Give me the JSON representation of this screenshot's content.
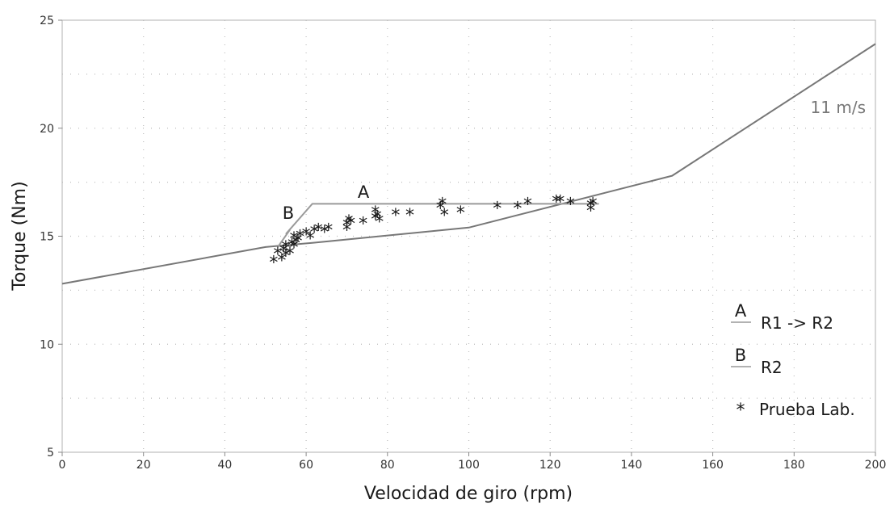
{
  "chart_data": {
    "type": "scatter",
    "xlabel": "Velocidad de giro (rpm)",
    "ylabel": "Torque (Nm)",
    "xlim": [
      0,
      200
    ],
    "ylim": [
      5,
      25
    ],
    "xticks": [
      0,
      20,
      40,
      60,
      80,
      100,
      120,
      140,
      160,
      180,
      200
    ],
    "yticks": [
      5,
      10,
      15,
      20,
      25
    ],
    "grid": true,
    "legend_position": "bottom-right",
    "line_color": "#777777",
    "series": [
      {
        "name": "",
        "type": "line",
        "x": [
          0,
          50,
          62,
          100,
          150,
          200
        ],
        "y": [
          12.8,
          14.5,
          14.7,
          15.4,
          17.8,
          23.9
        ]
      },
      {
        "name": "R1 -> R2",
        "type": "line",
        "annotation": "A",
        "x": [
          55,
          61.5,
          132
        ],
        "y": [
          15.1,
          16.5,
          16.5
        ]
      },
      {
        "name": "R2",
        "type": "line",
        "annotation": "B",
        "x": [
          53,
          56
        ],
        "y": [
          14.5,
          15.3
        ]
      },
      {
        "name": "Prueba Lab.",
        "type": "scatter",
        "marker": "*",
        "x": [
          52,
          53,
          54,
          54.5,
          55,
          55,
          56,
          56.5,
          57,
          57,
          57.5,
          58,
          58.5,
          60,
          61,
          62,
          63,
          64.5,
          65.5,
          70,
          70,
          70.5,
          71,
          74,
          77,
          77,
          77.5,
          78,
          82,
          85.5,
          93,
          93.5,
          94,
          98,
          107,
          112,
          114.5,
          121.5,
          122.5,
          125,
          130,
          130,
          130.5
        ],
        "y": [
          13.8,
          14.2,
          13.9,
          14.3,
          14.1,
          14.5,
          14.2,
          14.6,
          14.5,
          14.9,
          14.7,
          14.8,
          15.0,
          15.1,
          14.9,
          15.2,
          15.3,
          15.2,
          15.3,
          15.3,
          15.5,
          15.7,
          15.6,
          15.6,
          15.8,
          16.1,
          15.9,
          15.7,
          16.0,
          16.0,
          16.3,
          16.5,
          16.0,
          16.1,
          16.3,
          16.3,
          16.5,
          16.6,
          16.6,
          16.5,
          16.4,
          16.2,
          16.5
        ]
      }
    ],
    "annotations": [
      "A",
      "B",
      "11 m/s"
    ]
  },
  "legend": {
    "items": [
      {
        "letter": "A",
        "label": "R1 -> R2"
      },
      {
        "letter": "B",
        "label": "R2"
      },
      {
        "symbol": "*",
        "label": "Prueba Lab."
      }
    ]
  }
}
